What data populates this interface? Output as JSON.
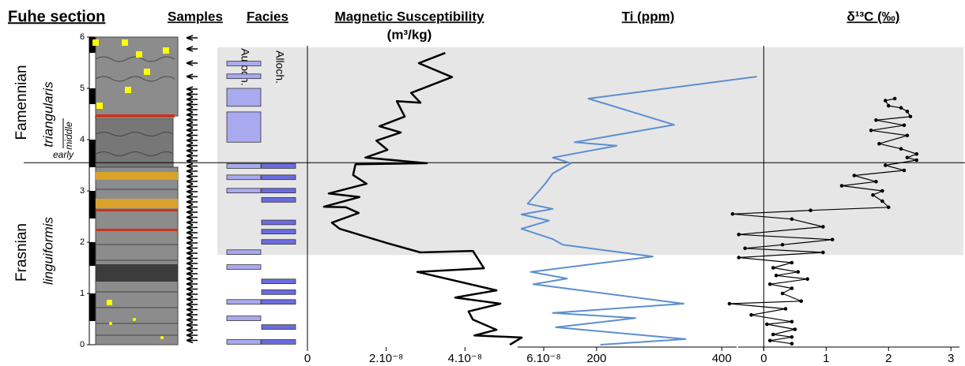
{
  "section": {
    "title": "Fuhe section",
    "yticks": [
      0,
      1,
      2,
      3,
      4,
      5,
      6
    ],
    "ylim": [
      0,
      6
    ]
  },
  "samples": {
    "title": "Samples"
  },
  "stages": {
    "upper": "Famennian",
    "lower": "Frasnian",
    "upper_zone": "triangularis",
    "upper_zone_middle": "middle",
    "upper_zone_early": "early",
    "lower_zone": "linguiformis"
  },
  "facies": {
    "title": "Facies",
    "labels": [
      "Autoch.",
      "Alloch."
    ],
    "beds": [
      [
        [
          5.44,
          5.53
        ],
        [
          5.19,
          5.28
        ],
        [
          4.65,
          5.0
        ],
        [
          3.95,
          4.54
        ],
        [
          3.44,
          3.53
        ],
        [
          3.22,
          3.31
        ],
        [
          2.96,
          3.05
        ],
        [
          1.76,
          1.85
        ],
        [
          1.47,
          1.56
        ],
        [
          0.79,
          0.88
        ],
        [
          0.47,
          0.56
        ],
        [
          0.01,
          0.1
        ]
      ],
      [
        [
          3.44,
          3.53
        ],
        [
          3.22,
          3.31
        ],
        [
          2.96,
          3.05
        ],
        [
          2.78,
          2.87
        ],
        [
          2.34,
          2.43
        ],
        [
          2.16,
          2.25
        ],
        [
          1.96,
          2.05
        ],
        [
          1.19,
          1.28
        ],
        [
          0.98,
          1.07
        ],
        [
          0.79,
          0.88
        ],
        [
          0.3,
          0.39
        ],
        [
          0.01,
          0.1
        ]
      ]
    ]
  },
  "shading": [
    1.75,
    5.8
  ],
  "boundary": 3.55,
  "chart_data": [
    {
      "type": "line",
      "title": "Magnetic Susceptibility",
      "units": "(m³/kg)",
      "color": "#000000",
      "markers": false,
      "xlim": [
        0,
        6e-08
      ],
      "xticks": [
        0,
        {
          "value": 2e-08,
          "label": "2.10⁻⁸"
        },
        {
          "value": 4e-08,
          "label": "4.10⁻⁸"
        },
        {
          "value": 6e-08,
          "label": "6.10⁻⁸"
        }
      ],
      "ylim": [
        0,
        6
      ],
      "heights": [
        5.69,
        5.49,
        5.22,
        4.91,
        4.72,
        4.75,
        4.45,
        4.26,
        4.14,
        3.98,
        3.8,
        3.65,
        3.54,
        3.52,
        3.31,
        3.14,
        2.95,
        2.88,
        2.69,
        2.68,
        2.57,
        2.38,
        2.26,
        1.98,
        1.8,
        1.83,
        1.49,
        1.42,
        1.06,
        0.92,
        0.8,
        0.65,
        0.49,
        0.29,
        0.18,
        0.14,
        0.0
      ],
      "values": [
        3.5e-08,
        2.83e-08,
        3.67e-08,
        2.63e-08,
        2.87e-08,
        2.27e-08,
        2.47e-08,
        1.83e-08,
        2.37e-08,
        1.75e-08,
        2.03e-08,
        1.47e-08,
        3.03e-08,
        1.22e-08,
        1.16e-08,
        1.5e-08,
        5.4e-09,
        1.32e-08,
        4.2e-09,
        9.8e-09,
        1.3e-08,
        6.2e-09,
        8.2e-09,
        2.03e-08,
        2.87e-08,
        4.2e-08,
        4.48e-08,
        2.79e-08,
        4.8e-08,
        3.75e-08,
        4.9e-08,
        4.09e-08,
        4.2e-08,
        4.8e-08,
        4.24e-08,
        5.44e-08,
        5.14e-08
      ]
    },
    {
      "type": "line",
      "title": "Ti (ppm)",
      "color": "#5b8fd0",
      "markers": false,
      "xlim": [
        55,
        430
      ],
      "xticks": [
        200,
        400
      ],
      "ylim": [
        0,
        6
      ],
      "heights": [
        5.23,
        4.8,
        4.29,
        3.95,
        3.88,
        3.65,
        3.54,
        3.34,
        3.14,
        3.03,
        2.75,
        2.65,
        2.54,
        2.42,
        2.26,
        2.06,
        1.95,
        1.72,
        1.42,
        1.29,
        1.18,
        0.8,
        0.62,
        0.52,
        0.34,
        0.11,
        0.0
      ],
      "values": [
        456,
        187,
        324,
        165,
        232,
        130,
        159,
        130,
        118,
        110,
        90,
        130,
        80,
        124,
        80,
        130,
        146,
        290,
        95,
        153,
        99,
        339,
        130,
        262,
        135,
        342,
        206
      ]
    },
    {
      "type": "line",
      "title": "δ¹³C (‰)",
      "color": "#000000",
      "markers": true,
      "xlim": [
        -0.6,
        3.2
      ],
      "xticks": [
        0,
        1,
        2,
        3
      ],
      "ylim": [
        0,
        6
      ],
      "heights": [
        4.8,
        4.76,
        4.66,
        4.62,
        4.55,
        4.45,
        4.38,
        4.28,
        4.18,
        4.08,
        3.92,
        3.82,
        3.72,
        3.65,
        3.6,
        3.5,
        3.4,
        3.3,
        3.18,
        3.1,
        3.0,
        2.92,
        2.8,
        2.68,
        2.62,
        2.55,
        2.45,
        2.3,
        2.15,
        2.05,
        1.95,
        1.88,
        1.8,
        1.7,
        1.6,
        1.5,
        1.42,
        1.35,
        1.28,
        1.18,
        1.1,
        1.0,
        0.85,
        0.8,
        0.7,
        0.58,
        0.45,
        0.4,
        0.3,
        0.2,
        0.15,
        0.08,
        0.02
      ],
      "values": [
        2.1,
        1.95,
        2.0,
        2.2,
        2.3,
        2.35,
        1.8,
        2.25,
        1.72,
        2.3,
        1.85,
        2.2,
        2.45,
        2.3,
        2.45,
        1.95,
        2.25,
        1.45,
        1.8,
        1.25,
        1.9,
        1.75,
        1.9,
        2.0,
        0.75,
        -0.5,
        0.45,
        0.95,
        -0.4,
        1.1,
        0.3,
        -0.3,
        0.95,
        -0.4,
        0.45,
        0.15,
        0.55,
        0.2,
        0.7,
        0.1,
        0.45,
        0.3,
        0.6,
        -0.55,
        0.35,
        -0.2,
        0.45,
        0.05,
        0.5,
        0.15,
        0.45,
        0.1,
        0.45
      ]
    }
  ]
}
